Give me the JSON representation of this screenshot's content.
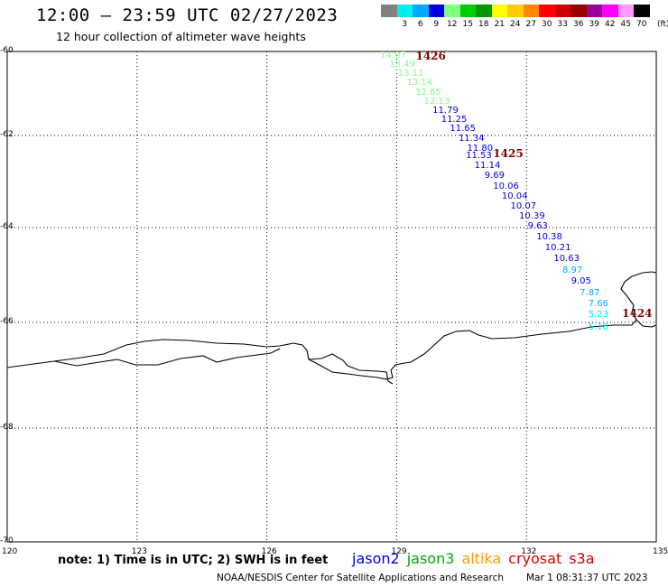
{
  "header": {
    "title": "12:00 — 23:59 UTC 02/27/2023",
    "subtitle": "12 hour collection of altimeter wave heights"
  },
  "colorbar": {
    "unit": "(ft)",
    "colors": [
      "#808080",
      "#00eeee",
      "#00aaff",
      "#0000dd",
      "#7fff7f",
      "#00cc00",
      "#009900",
      "#ffff00",
      "#ffcc00",
      "#ff8800",
      "#ff0000",
      "#cc0000",
      "#990000",
      "#990099",
      "#ff00ff",
      "#ff99ff",
      "#000000"
    ],
    "labels": [
      "3",
      "6",
      "9",
      "12",
      "15",
      "18",
      "21",
      "24",
      "27",
      "30",
      "33",
      "36",
      "39",
      "42",
      "45",
      "70"
    ]
  },
  "axes": {
    "lat_labels": [
      "-60",
      "-62",
      "-64",
      "-66",
      "-68",
      "-70"
    ],
    "lon_labels": [
      "120",
      "123",
      "126",
      "129",
      "132",
      "135"
    ]
  },
  "observations": [
    {
      "v": "14.97",
      "lat": -60.1,
      "lon": 128.62,
      "c": "#7fff7f"
    },
    {
      "v": "13.49",
      "lat": -60.32,
      "lon": 128.83,
      "c": "#7fff7f"
    },
    {
      "v": "13.11",
      "lat": -60.54,
      "lon": 129.03,
      "c": "#7fff7f"
    },
    {
      "v": "13.14",
      "lat": -60.76,
      "lon": 129.23,
      "c": "#7fff7f"
    },
    {
      "v": "12.65",
      "lat": -60.98,
      "lon": 129.43,
      "c": "#7fff7f"
    },
    {
      "v": "12.13",
      "lat": -61.2,
      "lon": 129.63,
      "c": "#7fff7f"
    },
    {
      "v": "11.79",
      "lat": -61.42,
      "lon": 129.83,
      "c": "#0000dd"
    },
    {
      "v": "11.25",
      "lat": -61.64,
      "lon": 130.03,
      "c": "#0000dd"
    },
    {
      "v": "11.65",
      "lat": -61.86,
      "lon": 130.23,
      "c": "#0000dd"
    },
    {
      "v": "11.34",
      "lat": -62.08,
      "lon": 130.43,
      "c": "#0000dd"
    },
    {
      "v": "11.80",
      "lat": -62.3,
      "lon": 130.63,
      "c": "#0000dd"
    },
    {
      "v": "11.53",
      "lat": -62.45,
      "lon": 130.6,
      "c": "#0000dd"
    },
    {
      "v": "11.14",
      "lat": -62.67,
      "lon": 130.8,
      "c": "#0000dd"
    },
    {
      "v": "9.69",
      "lat": -62.89,
      "lon": 131.03,
      "c": "#0000dd"
    },
    {
      "v": "10.06",
      "lat": -63.11,
      "lon": 131.23,
      "c": "#0000dd"
    },
    {
      "v": "10.04",
      "lat": -63.33,
      "lon": 131.43,
      "c": "#0000dd"
    },
    {
      "v": "10.07",
      "lat": -63.55,
      "lon": 131.63,
      "c": "#0000dd"
    },
    {
      "v": "10.39",
      "lat": -63.77,
      "lon": 131.83,
      "c": "#0000dd"
    },
    {
      "v": "9.63",
      "lat": -63.99,
      "lon": 132.03,
      "c": "#0000dd"
    },
    {
      "v": "10.38",
      "lat": -64.21,
      "lon": 132.23,
      "c": "#0000dd"
    },
    {
      "v": "10.21",
      "lat": -64.43,
      "lon": 132.43,
      "c": "#0000dd"
    },
    {
      "v": "10.63",
      "lat": -64.67,
      "lon": 132.63,
      "c": "#0000dd"
    },
    {
      "v": "8.97",
      "lat": -64.91,
      "lon": 132.83,
      "c": "#00aaff"
    },
    {
      "v": "9.05",
      "lat": -65.15,
      "lon": 133.03,
      "c": "#0000dd"
    },
    {
      "v": "7.87",
      "lat": -65.39,
      "lon": 133.23,
      "c": "#00aaff"
    },
    {
      "v": "7.66",
      "lat": -65.62,
      "lon": 133.43,
      "c": "#00aaff"
    },
    {
      "v": "5.23",
      "lat": -65.84,
      "lon": 133.43,
      "c": "#00eeee"
    },
    {
      "v": "5.18",
      "lat": -66.1,
      "lon": 133.43,
      "c": "#00eeee"
    }
  ],
  "passes": [
    {
      "label": "1426",
      "lat": -60.1,
      "lon": 129.44
    },
    {
      "label": "1425",
      "lat": -62.4,
      "lon": 131.23
    },
    {
      "label": "1424",
      "lat": -65.8,
      "lon": 134.21
    }
  ],
  "legend": {
    "note": "note: 1) Time is in UTC; 2) SWH is in feet",
    "satellites": [
      {
        "name": "jason2",
        "color": "#0000dd"
      },
      {
        "name": "jason3",
        "color": "#00aa00"
      },
      {
        "name": "altika",
        "color": "#ff9900"
      },
      {
        "name": "cryosat",
        "color": "#dd0000"
      },
      {
        "name": "s3a",
        "color": "#cc0000"
      }
    ]
  },
  "footer": {
    "credit": "NOAA/NESDIS Center for Satellite Applications and Research",
    "timestamp": "Mar  1 08:31:37 UTC 2023"
  }
}
